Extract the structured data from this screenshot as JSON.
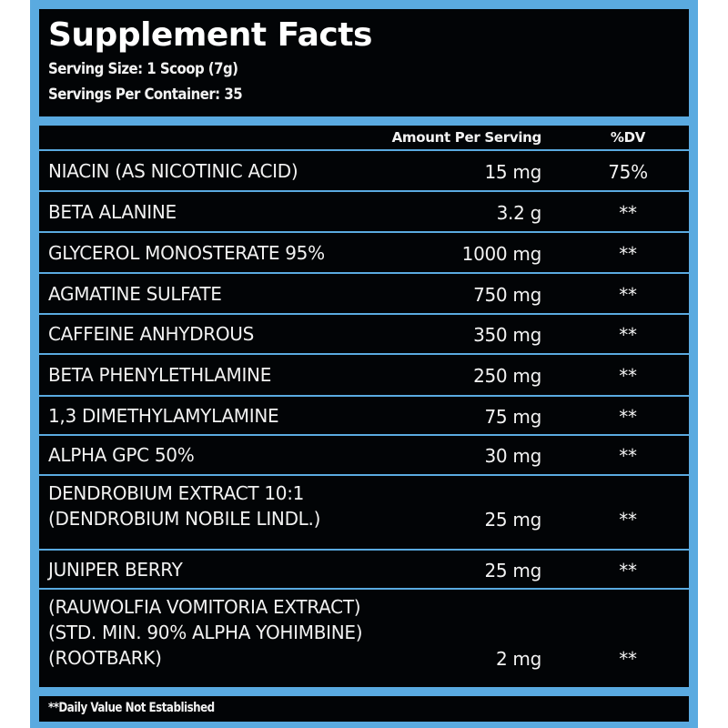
{
  "label": {
    "title": "Supplement Facts",
    "serving_size": "Serving Size: 1 Scoop (7g)",
    "servings_per_container": "Servings Per Container: 35",
    "columns": {
      "amount": "Amount Per Serving",
      "dv": "%DV"
    },
    "ingredients": [
      {
        "name": "NIACIN (AS NICOTINIC ACID)",
        "amount": "15 mg",
        "dv": "75%"
      },
      {
        "name": "BETA ALANINE",
        "amount": "3.2 g",
        "dv": "**"
      },
      {
        "name": "GLYCEROL MONOSTERATE 95%",
        "amount": "1000 mg",
        "dv": "**"
      },
      {
        "name": "AGMATINE SULFATE",
        "amount": "750 mg",
        "dv": "**"
      },
      {
        "name": "CAFFEINE ANHYDROUS",
        "amount": "350 mg",
        "dv": "**"
      },
      {
        "name": "BETA PHENYLETHLAMINE",
        "amount": "250 mg",
        "dv": "**"
      },
      {
        "name": "1,3 DIMETHYLAMYLAMINE",
        "amount": "75 mg",
        "dv": "**"
      },
      {
        "name": "ALPHA GPC 50%",
        "amount": "30 mg",
        "dv": "**"
      },
      {
        "name": "DENDROBIUM EXTRACT 10:1\n(DENDROBIUM NOBILE LINDL.)",
        "amount": "25 mg",
        "dv": "**"
      },
      {
        "name": "JUNIPER BERRY",
        "amount": "25 mg",
        "dv": "**"
      },
      {
        "name": "(RAUWOLFIA VOMITORIA EXTRACT)\n(STD. MIN. 90% ALPHA YOHIMBINE)\n(ROOTBARK)",
        "amount": "2 mg",
        "dv": "**"
      }
    ],
    "footnote": "**Daily Value Not Established"
  },
  "colors": {
    "border": "#5aaae0",
    "background": "#020406",
    "text": "#f2f2f2"
  }
}
